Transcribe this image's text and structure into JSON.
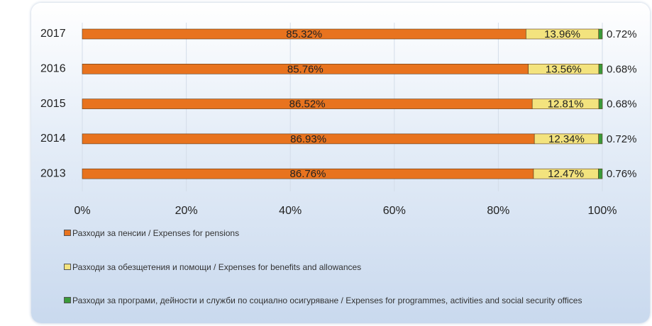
{
  "chart_data": {
    "type": "stacked_bar_horizontal",
    "categories": [
      "2017",
      "2016",
      "2015",
      "2014",
      "2013"
    ],
    "series": [
      {
        "name": "Разходи за пенсии /  Expenses for pensions",
        "color": "#e8731e",
        "values": [
          85.32,
          85.76,
          86.52,
          86.93,
          86.76
        ],
        "value_labels": [
          "85.32%",
          "85.76%",
          "86.52%",
          "86.93%",
          "86.76%"
        ]
      },
      {
        "name": "Разходи за обезщетения и помощи / Expenses for benefits and allowances",
        "color": "#f3e37e",
        "values": [
          13.96,
          13.56,
          12.81,
          12.34,
          12.47
        ],
        "value_labels": [
          "13.96%",
          "13.56%",
          "12.81%",
          "12.34%",
          "12.47%"
        ]
      },
      {
        "name": "Разходи за програми, дейности и служби по социално осигуряване / Expenses for programmes, activities and social security offices",
        "color": "#3a9a3a",
        "values": [
          0.72,
          0.68,
          0.68,
          0.72,
          0.76
        ],
        "value_labels": [
          "0.72%",
          "0.68%",
          "0.68%",
          "0.72%",
          "0.76%"
        ]
      }
    ],
    "xlim": [
      0,
      100
    ],
    "xticks": [
      {
        "value": 0,
        "label": "0%"
      },
      {
        "value": 20,
        "label": "20%"
      },
      {
        "value": 40,
        "label": "40%"
      },
      {
        "value": 60,
        "label": "60%"
      },
      {
        "value": 80,
        "label": "80%"
      },
      {
        "value": 100,
        "label": "100%"
      }
    ],
    "grid": true
  }
}
